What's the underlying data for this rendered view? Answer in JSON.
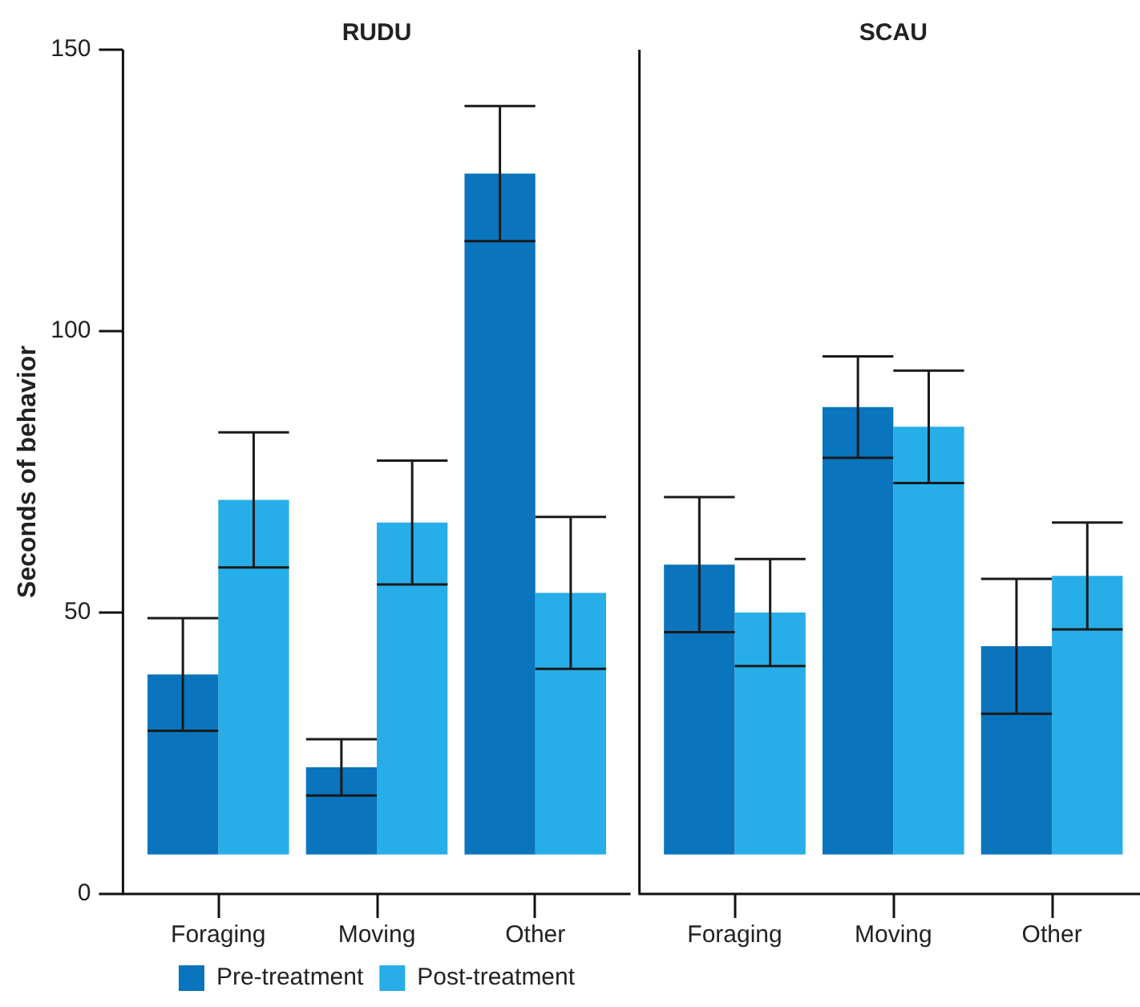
{
  "chart_data": [
    {
      "type": "bar",
      "title": "RUDU",
      "ylabel": "Seconds of behavior",
      "categories": [
        "Foraging",
        "Moving",
        "Other"
      ],
      "series": [
        {
          "name": "Pre-treatment",
          "color": "#0a74bd",
          "base": [
            7,
            7,
            7
          ],
          "values": [
            32,
            15.5,
            121
          ],
          "errors": [
            10,
            5,
            12
          ]
        },
        {
          "name": "Post-treatment",
          "color": "#27aee8",
          "base": [
            7,
            7,
            7
          ],
          "values": [
            63,
            59,
            46.5
          ],
          "errors": [
            12,
            11,
            13.5
          ]
        }
      ],
      "ylim": [
        0,
        150
      ],
      "yticks": [
        0,
        50,
        100,
        150
      ],
      "legend": "bottom"
    },
    {
      "type": "bar",
      "title": "SCAU",
      "categories": [
        "Foraging",
        "Moving",
        "Other"
      ],
      "series": [
        {
          "color": "#0a74bd",
          "base": [
            7,
            7,
            7
          ],
          "values": [
            51.5,
            79.5,
            37
          ],
          "errors": [
            12,
            9,
            12
          ]
        },
        {
          "color": "#27aee8",
          "base": [
            7,
            7,
            7
          ],
          "values": [
            43,
            76,
            49.5
          ],
          "errors": [
            9.5,
            10,
            9.5
          ]
        }
      ],
      "ylim": [
        0,
        150
      ],
      "yticks": [
        0,
        50,
        100,
        150
      ],
      "tick_labels": "x"
    }
  ]
}
